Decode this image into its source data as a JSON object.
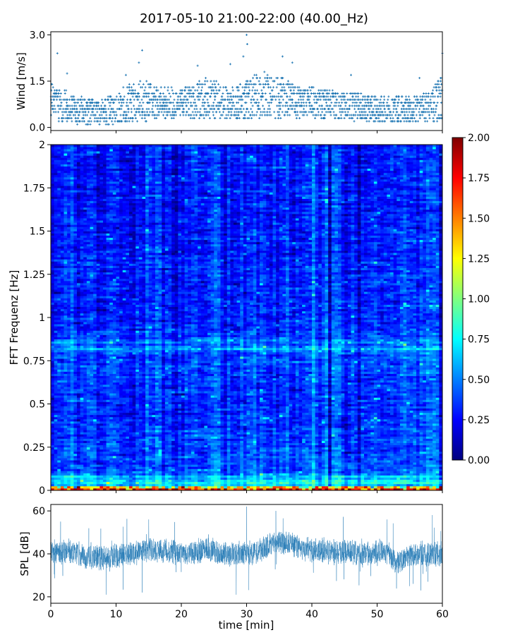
{
  "figure": {
    "title": "2017-05-10 21:00-22:00 (40.00_Hz)"
  },
  "chart_data": [
    {
      "type": "scatter",
      "panel": "wind",
      "ylabel": "Wind [m/s]",
      "xlim": [
        0,
        60
      ],
      "ylim": [
        -0.1,
        3.1
      ],
      "yticks": [
        "0.0",
        "1.5",
        "3.0"
      ],
      "ytick_values": [
        0.0,
        1.5,
        3.0
      ],
      "color": "#1f77b4",
      "marker": "+",
      "samples_per_minute": 60,
      "envelope_minutes": [
        0,
        2,
        4,
        6,
        8,
        10,
        12,
        14,
        16,
        18,
        20,
        22,
        24,
        26,
        28,
        30,
        32,
        34,
        36,
        38,
        40,
        42,
        44,
        46,
        48,
        50,
        52,
        54,
        56,
        58,
        60
      ],
      "envelope_low": [
        0.3,
        0.2,
        0.15,
        0.1,
        0.1,
        0.15,
        0.2,
        0.2,
        0.3,
        0.3,
        0.3,
        0.3,
        0.3,
        0.3,
        0.3,
        0.3,
        0.3,
        0.3,
        0.35,
        0.3,
        0.3,
        0.3,
        0.25,
        0.2,
        0.2,
        0.2,
        0.15,
        0.15,
        0.15,
        0.2,
        0.2
      ],
      "envelope_high": [
        1.4,
        1.2,
        1.0,
        0.9,
        0.9,
        1.1,
        1.4,
        1.5,
        1.4,
        1.3,
        1.3,
        1.4,
        1.6,
        1.4,
        1.3,
        1.6,
        1.8,
        1.7,
        1.6,
        1.3,
        1.3,
        1.2,
        1.2,
        1.1,
        1.1,
        1.0,
        1.0,
        1.0,
        1.0,
        1.2,
        1.7
      ],
      "peaks": [
        {
          "t": 1.0,
          "v": 2.4
        },
        {
          "t": 2.5,
          "v": 1.75
        },
        {
          "t": 11.5,
          "v": 1.7
        },
        {
          "t": 13.5,
          "v": 2.1
        },
        {
          "t": 14.0,
          "v": 2.5
        },
        {
          "t": 22.5,
          "v": 2.0
        },
        {
          "t": 27.5,
          "v": 2.05
        },
        {
          "t": 29.5,
          "v": 2.3
        },
        {
          "t": 30.0,
          "v": 3.0
        },
        {
          "t": 30.1,
          "v": 2.7
        },
        {
          "t": 35.5,
          "v": 2.3
        },
        {
          "t": 37.0,
          "v": 2.1
        },
        {
          "t": 46.0,
          "v": 1.7
        },
        {
          "t": 56.5,
          "v": 1.6
        },
        {
          "t": 60.0,
          "v": 2.4
        }
      ]
    },
    {
      "type": "heatmap",
      "panel": "spectrogram",
      "ylabel": "FFT Frequenz [Hz]",
      "xlim": [
        0,
        60
      ],
      "ylim": [
        0,
        2
      ],
      "yticks": [
        "0",
        "0.25",
        "0.5",
        "0.75",
        "1",
        "1.25",
        "1.5",
        "1.75",
        "2"
      ],
      "ytick_values": [
        0,
        0.25,
        0.5,
        0.75,
        1,
        1.25,
        1.5,
        1.75,
        2
      ],
      "colormap": "jet",
      "clim": [
        0,
        2
      ],
      "colorbar_ticks": [
        "0.00",
        "0.25",
        "0.50",
        "0.75",
        "1.00",
        "1.25",
        "1.50",
        "1.75",
        "2.00"
      ],
      "colorbar_tick_values": [
        0,
        0.25,
        0.5,
        0.75,
        1,
        1.25,
        1.5,
        1.75,
        2
      ],
      "time_bins": 120,
      "freq_bins": 160,
      "mean_by_freq": [
        [
          0,
          1.15
        ],
        [
          0.03,
          0.6
        ],
        [
          0.1,
          0.42
        ],
        [
          0.25,
          0.38
        ],
        [
          0.5,
          0.34
        ],
        [
          0.8,
          0.4
        ],
        [
          1.0,
          0.32
        ],
        [
          1.5,
          0.3
        ],
        [
          2.0,
          0.3
        ]
      ],
      "bands": [
        {
          "f": 0.01,
          "v": 1.6
        },
        {
          "f": 0.05,
          "v": 0.75
        },
        {
          "f": 0.08,
          "v": 0.7
        },
        {
          "f": 0.82,
          "v": 0.75
        },
        {
          "f": 0.86,
          "v": 0.65
        }
      ]
    },
    {
      "type": "line",
      "panel": "spl",
      "ylabel": "SPL [dB]",
      "xlabel": "time [min]",
      "xlim": [
        0,
        60
      ],
      "ylim": [
        17,
        63
      ],
      "xticks": [
        "0",
        "10",
        "20",
        "30",
        "40",
        "50",
        "60"
      ],
      "xtick_values": [
        0,
        10,
        20,
        30,
        40,
        50,
        60
      ],
      "yticks": [
        "20",
        "40",
        "60"
      ],
      "ytick_values": [
        20,
        40,
        60
      ],
      "color": "#1f77b4",
      "samples": 3000,
      "mean_curve_minutes": [
        0,
        3,
        6,
        9,
        12,
        15,
        18,
        21,
        24,
        27,
        30,
        33,
        35,
        37,
        40,
        43,
        46,
        49,
        51,
        53,
        55,
        57,
        60
      ],
      "mean_curve_db": [
        41,
        41,
        38,
        38,
        40,
        42,
        41,
        40,
        42,
        40,
        40,
        43,
        46,
        44,
        42,
        41,
        41,
        40,
        41,
        36,
        39,
        40,
        40
      ],
      "spread_db": 6.5,
      "spikes": [
        {
          "t": 1.5,
          "v": 55
        },
        {
          "t": 15.0,
          "v": 56
        },
        {
          "t": 30.0,
          "v": 62
        },
        {
          "t": 34.5,
          "v": 60
        },
        {
          "t": 51.5,
          "v": 56
        },
        {
          "t": 14.0,
          "v": 22
        },
        {
          "t": 8.5,
          "v": 21
        },
        {
          "t": 55.0,
          "v": 25
        }
      ]
    }
  ]
}
